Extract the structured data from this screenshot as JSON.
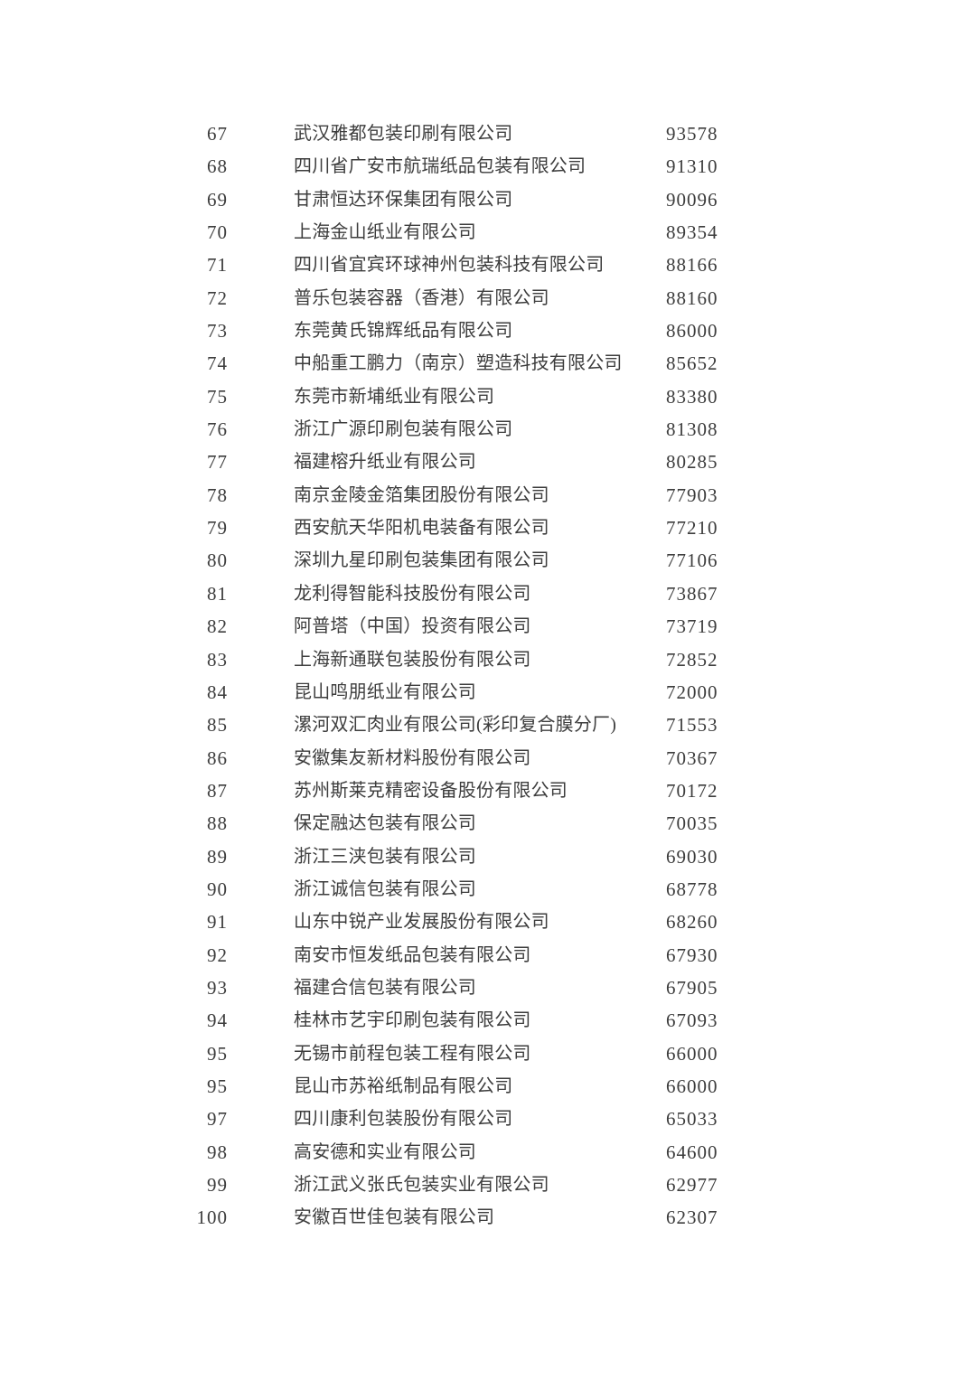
{
  "page": {
    "background_color": "#ffffff",
    "text_color": "#3d3d3d",
    "description": "Scanned ranking list page, ranks 67-100, company names with numeric values"
  },
  "table": {
    "columns": [
      "rank",
      "company",
      "value"
    ],
    "rows": [
      {
        "rank": "67",
        "company": "武汉雅都包装印刷有限公司",
        "value": "93578"
      },
      {
        "rank": "68",
        "company": "四川省广安市航瑞纸品包装有限公司",
        "value": "91310"
      },
      {
        "rank": "69",
        "company": "甘肃恒达环保集团有限公司",
        "value": "90096"
      },
      {
        "rank": "70",
        "company": "上海金山纸业有限公司",
        "value": "89354"
      },
      {
        "rank": "71",
        "company": "四川省宜宾环球神州包装科技有限公司",
        "value": "88166"
      },
      {
        "rank": "72",
        "company": "普乐包装容器（香港）有限公司",
        "value": "88160"
      },
      {
        "rank": "73",
        "company": "东莞黄氏锦辉纸品有限公司",
        "value": "86000"
      },
      {
        "rank": "74",
        "company": "中船重工鹏力（南京）塑造科技有限公司",
        "value": "85652"
      },
      {
        "rank": "75",
        "company": "东莞市新埔纸业有限公司",
        "value": "83380"
      },
      {
        "rank": "76",
        "company": "浙江广源印刷包装有限公司",
        "value": "81308"
      },
      {
        "rank": "77",
        "company": "福建榕升纸业有限公司",
        "value": "80285"
      },
      {
        "rank": "78",
        "company": "南京金陵金箔集团股份有限公司",
        "value": "77903"
      },
      {
        "rank": "79",
        "company": "西安航天华阳机电装备有限公司",
        "value": "77210"
      },
      {
        "rank": "80",
        "company": "深圳九星印刷包装集团有限公司",
        "value": "77106"
      },
      {
        "rank": "81",
        "company": "龙利得智能科技股份有限公司",
        "value": "73867"
      },
      {
        "rank": "82",
        "company": "阿普塔（中国）投资有限公司",
        "value": "73719"
      },
      {
        "rank": "83",
        "company": "上海新通联包装股份有限公司",
        "value": "72852"
      },
      {
        "rank": "84",
        "company": "昆山鸣朋纸业有限公司",
        "value": "72000"
      },
      {
        "rank": "85",
        "company": "漯河双汇肉业有限公司(彩印复合膜分厂)",
        "value": "71553"
      },
      {
        "rank": "86",
        "company": "安徽集友新材料股份有限公司",
        "value": "70367"
      },
      {
        "rank": "87",
        "company": "苏州斯莱克精密设备股份有限公司",
        "value": "70172"
      },
      {
        "rank": "88",
        "company": "保定融达包装有限公司",
        "value": "70035"
      },
      {
        "rank": "89",
        "company": "浙江三浃包装有限公司",
        "value": "69030"
      },
      {
        "rank": "90",
        "company": "浙江诚信包装有限公司",
        "value": "68778"
      },
      {
        "rank": "91",
        "company": "山东中锐产业发展股份有限公司",
        "value": "68260"
      },
      {
        "rank": "92",
        "company": "南安市恒发纸品包装有限公司",
        "value": "67930"
      },
      {
        "rank": "93",
        "company": "福建合信包装有限公司",
        "value": "67905"
      },
      {
        "rank": "94",
        "company": "桂林市艺宇印刷包装有限公司",
        "value": "67093"
      },
      {
        "rank": "95",
        "company": "无锡市前程包装工程有限公司",
        "value": "66000"
      },
      {
        "rank": "95",
        "company": "昆山市苏裕纸制品有限公司",
        "value": "66000"
      },
      {
        "rank": "97",
        "company": "四川康利包装股份有限公司",
        "value": "65033"
      },
      {
        "rank": "98",
        "company": "高安德和实业有限公司",
        "value": "64600"
      },
      {
        "rank": "99",
        "company": "浙江武义张氏包装实业有限公司",
        "value": "62977"
      },
      {
        "rank": "100",
        "company": "安徽百世佳包装有限公司",
        "value": "62307"
      }
    ]
  }
}
